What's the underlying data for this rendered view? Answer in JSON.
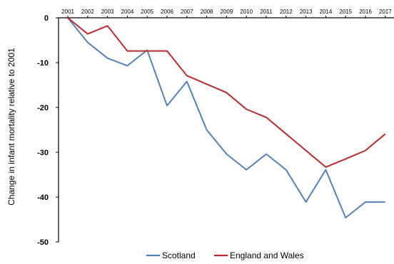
{
  "chart_data": {
    "type": "line",
    "title": "",
    "xlabel": "",
    "ylabel": "Change in infant mortality relative to 2001",
    "x": [
      "2001",
      "2002",
      "2003",
      "2004",
      "2005",
      "2006",
      "2007",
      "2008",
      "2009",
      "2010",
      "2011",
      "2012",
      "2013",
      "2014",
      "2015",
      "2016",
      "2017"
    ],
    "ylim": [
      -50,
      0
    ],
    "yticks": [
      0,
      -10,
      -20,
      -30,
      -40,
      -50
    ],
    "grid": false,
    "legend_position": "bottom",
    "series": [
      {
        "name": "Scotland",
        "color": "#4f81bd",
        "values": [
          0,
          -5.5,
          -9,
          -10.7,
          -7.2,
          -19.6,
          -14.2,
          -25,
          -30.4,
          -33.9,
          -30.4,
          -33.9,
          -41.1,
          -33.9,
          -44.6,
          -41.1,
          -41.1
        ]
      },
      {
        "name": "England and Wales",
        "color": "#c0282d",
        "values": [
          0,
          -3.6,
          -1.8,
          -7.4,
          -7.4,
          -7.4,
          -12.9,
          -14.8,
          -16.7,
          -20.4,
          -22.2,
          -25.9,
          -29.6,
          -33.3,
          -31.5,
          -29.6,
          -25.9
        ]
      }
    ]
  }
}
